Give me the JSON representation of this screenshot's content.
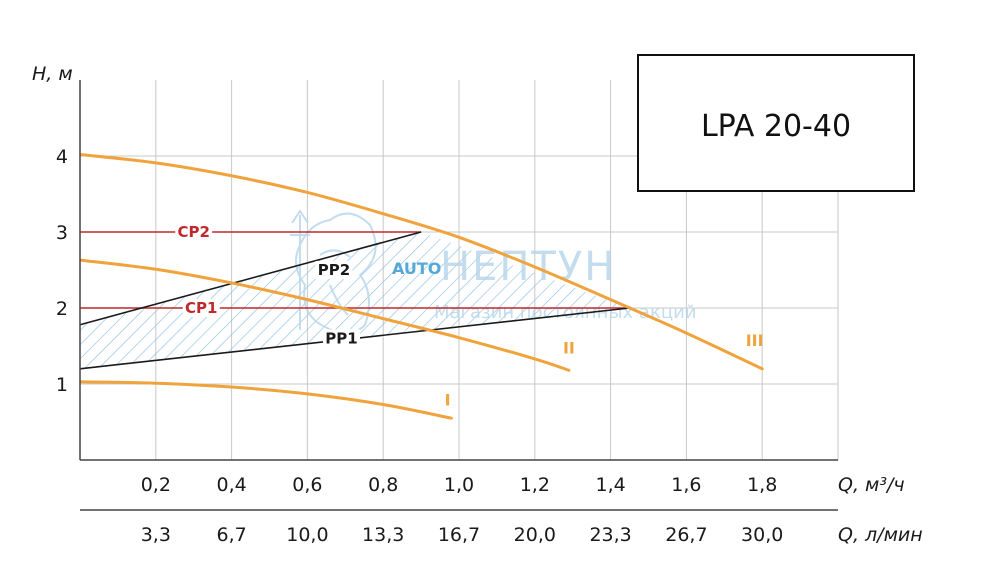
{
  "chart_data": {
    "type": "line",
    "model": "LPA 20-40",
    "ylabel": "H, м",
    "xlabel_m3h": "Q, м³/ч",
    "xlabel_lmin": "Q, л/мин",
    "xlim": [
      0,
      2.0
    ],
    "ylim": [
      0,
      5.0
    ],
    "y_ticks": [
      "1",
      "2",
      "3",
      "4"
    ],
    "y_tick_values": [
      1,
      2,
      3,
      4
    ],
    "x_tick_values": [
      0.2,
      0.4,
      0.6,
      0.8,
      1.0,
      1.2,
      1.4,
      1.6,
      1.8
    ],
    "x_ticks_m3h": [
      "0,2",
      "0,4",
      "0,6",
      "0,8",
      "1,0",
      "1,2",
      "1,4",
      "1,6",
      "1,8"
    ],
    "x_ticks_lmin": [
      "3,3",
      "6,7",
      "10,0",
      "13,3",
      "16,7",
      "20,0",
      "23,3",
      "26,7",
      "30,0"
    ],
    "series": [
      {
        "name": "I",
        "x": [
          0,
          0.2,
          0.4,
          0.6,
          0.8,
          0.98
        ],
        "y": [
          1.03,
          1.01,
          0.96,
          0.87,
          0.73,
          0.55
        ]
      },
      {
        "name": "II",
        "x": [
          0,
          0.2,
          0.4,
          0.6,
          0.8,
          1.0,
          1.2,
          1.29
        ],
        "y": [
          2.63,
          2.51,
          2.33,
          2.11,
          1.86,
          1.61,
          1.33,
          1.18
        ]
      },
      {
        "name": "III",
        "x": [
          0,
          0.2,
          0.4,
          0.6,
          0.8,
          1.0,
          1.2,
          1.4,
          1.6,
          1.8
        ],
        "y": [
          4.02,
          3.91,
          3.74,
          3.52,
          3.24,
          2.93,
          2.54,
          2.11,
          1.67,
          1.2
        ]
      }
    ],
    "control_lines": [
      {
        "name": "CP2",
        "type": "constant",
        "y": 3.0,
        "x_end": 0.9
      },
      {
        "name": "CP1",
        "type": "constant",
        "y": 2.0,
        "x_end": 1.45
      },
      {
        "name": "PP2",
        "type": "proportional",
        "x": [
          0,
          0.9
        ],
        "y": [
          1.78,
          3.0
        ]
      },
      {
        "name": "PP1",
        "type": "proportional",
        "x": [
          0,
          1.45
        ],
        "y": [
          1.2,
          2.0
        ]
      }
    ],
    "auto_region_label": "AUTO",
    "colors": {
      "curve": "#f0a33c",
      "constant_line": "#c0282d",
      "proportional_line": "#1a1a1a",
      "grid": "#c8c8c8",
      "auto_hatch": "#8fc1e3",
      "auto_label": "#56a8d8"
    }
  },
  "watermark": {
    "title": "НЕПТУН",
    "subtitle": "Магазин постоянных акций"
  }
}
